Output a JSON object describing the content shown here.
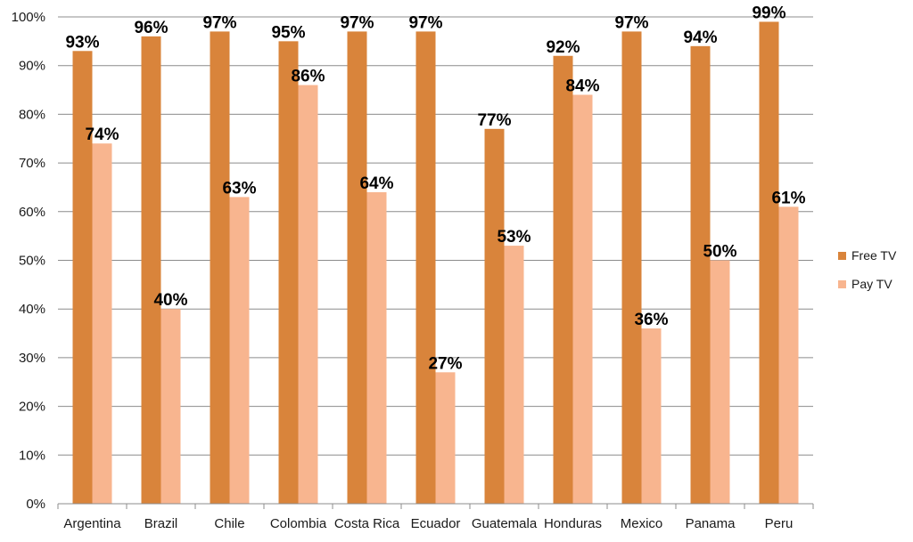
{
  "chart_data": {
    "type": "bar",
    "categories": [
      "Argentina",
      "Brazil",
      "Chile",
      "Colombia",
      "Costa Rica",
      "Ecuador",
      "Guatemala",
      "Honduras",
      "Mexico",
      "Panama",
      "Peru"
    ],
    "series": [
      {
        "name": "Free TV",
        "color": "#d9843b",
        "values": [
          93,
          96,
          97,
          95,
          97,
          97,
          77,
          92,
          97,
          94,
          99
        ]
      },
      {
        "name": "Pay TV",
        "color": "#f8b58f",
        "values": [
          74,
          40,
          63,
          86,
          64,
          27,
          53,
          84,
          36,
          50,
          61
        ]
      }
    ],
    "ylim": [
      0,
      100
    ],
    "yticks": [
      0,
      10,
      20,
      30,
      40,
      50,
      60,
      70,
      80,
      90,
      100
    ],
    "ytick_suffix": "%",
    "data_label_suffix": "%",
    "grid": true,
    "legend_position": "right",
    "title": "",
    "xlabel": "",
    "ylabel": ""
  }
}
